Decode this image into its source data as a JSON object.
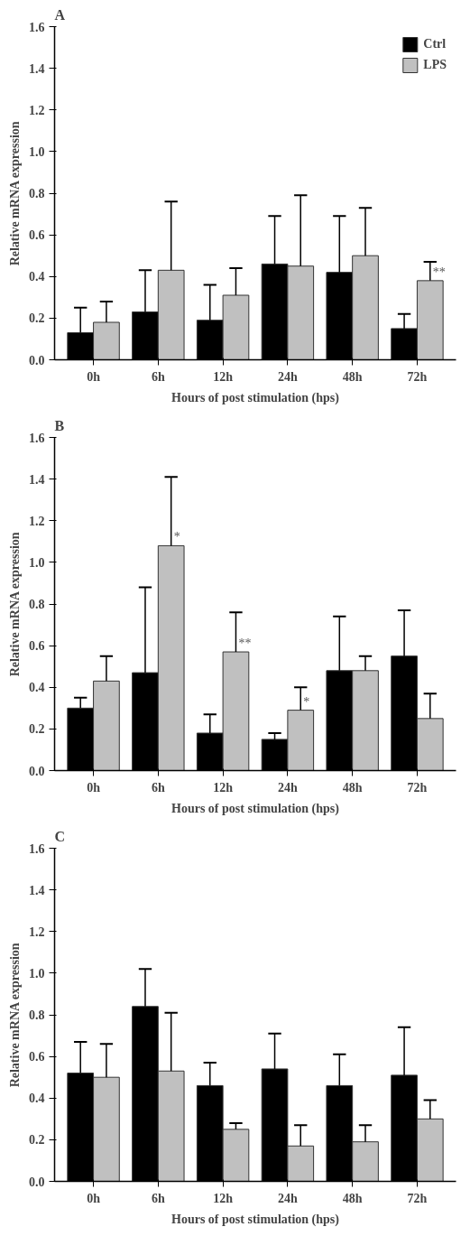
{
  "chart_data": [
    {
      "type": "bar",
      "title": "A",
      "xlabel": "Hours of post stimulation (hps)",
      "ylabel": "Relative mRNA expression",
      "categories": [
        "0h",
        "6h",
        "12h",
        "24h",
        "48h",
        "72h"
      ],
      "ylim": [
        0,
        1.6
      ],
      "yticks": [
        {
          "value": 0,
          "label": "0.0"
        },
        {
          "value": 0.2,
          "label": "0.2"
        },
        {
          "value": 0.4,
          "label": "0.4"
        },
        {
          "value": 0.6,
          "label": "0.6"
        },
        {
          "value": 0.8,
          "label": "0.8"
        },
        {
          "value": 1.0,
          "label": "1.0"
        },
        {
          "value": 1.2,
          "label": "1.2"
        },
        {
          "value": 1.4,
          "label": "1.4"
        },
        {
          "value": 1.6,
          "label": "1.6"
        }
      ],
      "grid": false,
      "legend": "top right",
      "series": [
        {
          "name": "Ctrl",
          "color": "#000000",
          "values": [
            0.13,
            0.23,
            0.19,
            0.46,
            0.42,
            0.15
          ],
          "errors": [
            [
              0.13,
              0.25
            ],
            [
              0.23,
              0.43
            ],
            [
              0.19,
              0.36
            ],
            [
              0.46,
              0.69
            ],
            [
              0.42,
              0.69
            ],
            [
              0.15,
              0.22
            ]
          ]
        },
        {
          "name": "LPS",
          "color": "#c0c0c0",
          "values": [
            0.18,
            0.43,
            0.31,
            0.45,
            0.5,
            0.38
          ],
          "errors": [
            [
              0.18,
              0.28
            ],
            [
              0.43,
              0.76
            ],
            [
              0.31,
              0.44
            ],
            [
              0.45,
              0.79
            ],
            [
              0.5,
              0.73
            ],
            [
              0.38,
              0.47
            ]
          ],
          "value_labels": [
            null,
            null,
            null,
            null,
            null,
            "**"
          ]
        }
      ]
    },
    {
      "type": "bar",
      "title": "B",
      "xlabel": "Hours of post stimulation (hps)",
      "ylabel": "Relative mRNA expression",
      "categories": [
        "0h",
        "6h",
        "12h",
        "24h",
        "48h",
        "72h"
      ],
      "ylim": [
        0,
        1.6
      ],
      "yticks": [
        {
          "value": 0,
          "label": "0.0"
        },
        {
          "value": 0.2,
          "label": "0.2"
        },
        {
          "value": 0.4,
          "label": "0.4"
        },
        {
          "value": 0.6,
          "label": "0.6"
        },
        {
          "value": 0.8,
          "label": "0.8"
        },
        {
          "value": 1.0,
          "label": "1.0"
        },
        {
          "value": 1.2,
          "label": "1.2"
        },
        {
          "value": 1.4,
          "label": "1.4"
        },
        {
          "value": 1.6,
          "label": "1.6"
        }
      ],
      "grid": false,
      "series": [
        {
          "color": "#000000",
          "values": [
            0.3,
            0.47,
            0.18,
            0.15,
            0.48,
            0.55
          ],
          "errors": [
            [
              0.3,
              0.35
            ],
            [
              0.47,
              0.88
            ],
            [
              0.18,
              0.27
            ],
            [
              0.15,
              0.18
            ],
            [
              0.48,
              0.74
            ],
            [
              0.55,
              0.77
            ]
          ]
        },
        {
          "color": "#c0c0c0",
          "values": [
            0.43,
            1.08,
            0.57,
            0.29,
            0.48,
            0.25
          ],
          "errors": [
            [
              0.43,
              0.55
            ],
            [
              1.08,
              1.41
            ],
            [
              0.57,
              0.76
            ],
            [
              0.29,
              0.4
            ],
            [
              0.48,
              0.55
            ],
            [
              0.25,
              0.37
            ]
          ],
          "value_labels": [
            null,
            "*",
            "**",
            "*",
            null,
            null
          ]
        }
      ]
    },
    {
      "type": "bar",
      "title": "C",
      "xlabel": "Hours of post stimulation (hps)",
      "ylabel": "Relative mRNA expression",
      "categories": [
        "0h",
        "6h",
        "12h",
        "24h",
        "48h",
        "72h"
      ],
      "ylim": [
        0,
        1.6
      ],
      "yticks": [
        {
          "value": 0,
          "label": "0.0"
        },
        {
          "value": 0.2,
          "label": "0.2"
        },
        {
          "value": 0.4,
          "label": "0.4"
        },
        {
          "value": 0.6,
          "label": "0.6"
        },
        {
          "value": 0.8,
          "label": "0.8"
        },
        {
          "value": 1.0,
          "label": "1.0"
        },
        {
          "value": 1.2,
          "label": "1.2"
        },
        {
          "value": 1.4,
          "label": "1.4"
        },
        {
          "value": 1.6,
          "label": "1.6"
        }
      ],
      "grid": false,
      "series": [
        {
          "color": "#000000",
          "values": [
            0.52,
            0.84,
            0.46,
            0.54,
            0.46,
            0.51
          ],
          "errors": [
            [
              0.52,
              0.67
            ],
            [
              0.84,
              1.02
            ],
            [
              0.46,
              0.57
            ],
            [
              0.54,
              0.71
            ],
            [
              0.46,
              0.61
            ],
            [
              0.51,
              0.74
            ]
          ]
        },
        {
          "color": "#c0c0c0",
          "values": [
            0.5,
            0.53,
            0.25,
            0.17,
            0.19,
            0.3
          ],
          "errors": [
            [
              0.5,
              0.66
            ],
            [
              0.53,
              0.81
            ],
            [
              0.25,
              0.28
            ],
            [
              0.17,
              0.27
            ],
            [
              0.19,
              0.27
            ],
            [
              0.3,
              0.39
            ]
          ]
        }
      ]
    }
  ]
}
